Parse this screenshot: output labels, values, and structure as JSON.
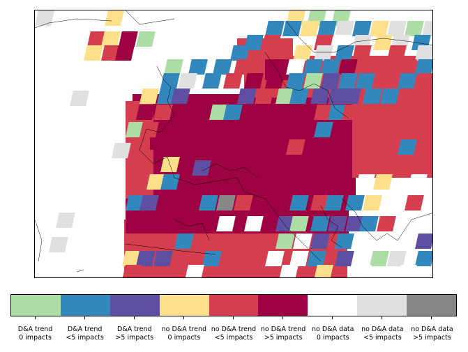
{
  "categories": [
    {
      "id": "dna_trend_0",
      "label_line1": "D&A trend",
      "label_line2": "0 impacts",
      "color": "#abdda4"
    },
    {
      "id": "dna_trend_lt5",
      "label_line1": "D&A trend",
      "label_line2": "<5 impacts",
      "color": "#3288bd"
    },
    {
      "id": "dna_trend_gt5",
      "label_line1": "D&A trend",
      "label_line2": ">5 impacts",
      "color": "#5e4fa2"
    },
    {
      "id": "no_dna_trend_0",
      "label_line1": "no D&A trend",
      "label_line2": "0 impacts",
      "color": "#fee08b"
    },
    {
      "id": "no_dna_trend_lt5",
      "label_line1": "no D&A trend",
      "label_line2": "<5 impacts",
      "color": "#d53e4f"
    },
    {
      "id": "no_dna_trend_gt5",
      "label_line1": "no D&A trend",
      "label_line2": ">5 impacts",
      "color": "#9e0142"
    },
    {
      "id": "no_dna_data_0",
      "label_line1": "no D&A data",
      "label_line2": "0 impacts",
      "color": "#ffffff"
    },
    {
      "id": "no_dna_data_lt5",
      "label_line1": "no D&A data",
      "label_line2": "<5 impacts",
      "color": "#e0e0e0"
    },
    {
      "id": "no_dna_data_gt5",
      "label_line1": "no D&A data",
      "label_line2": ">5 impacts",
      "color": "#878787"
    }
  ],
  "map": {
    "background_color": "#ffffff",
    "coastline_color": "#000000"
  }
}
